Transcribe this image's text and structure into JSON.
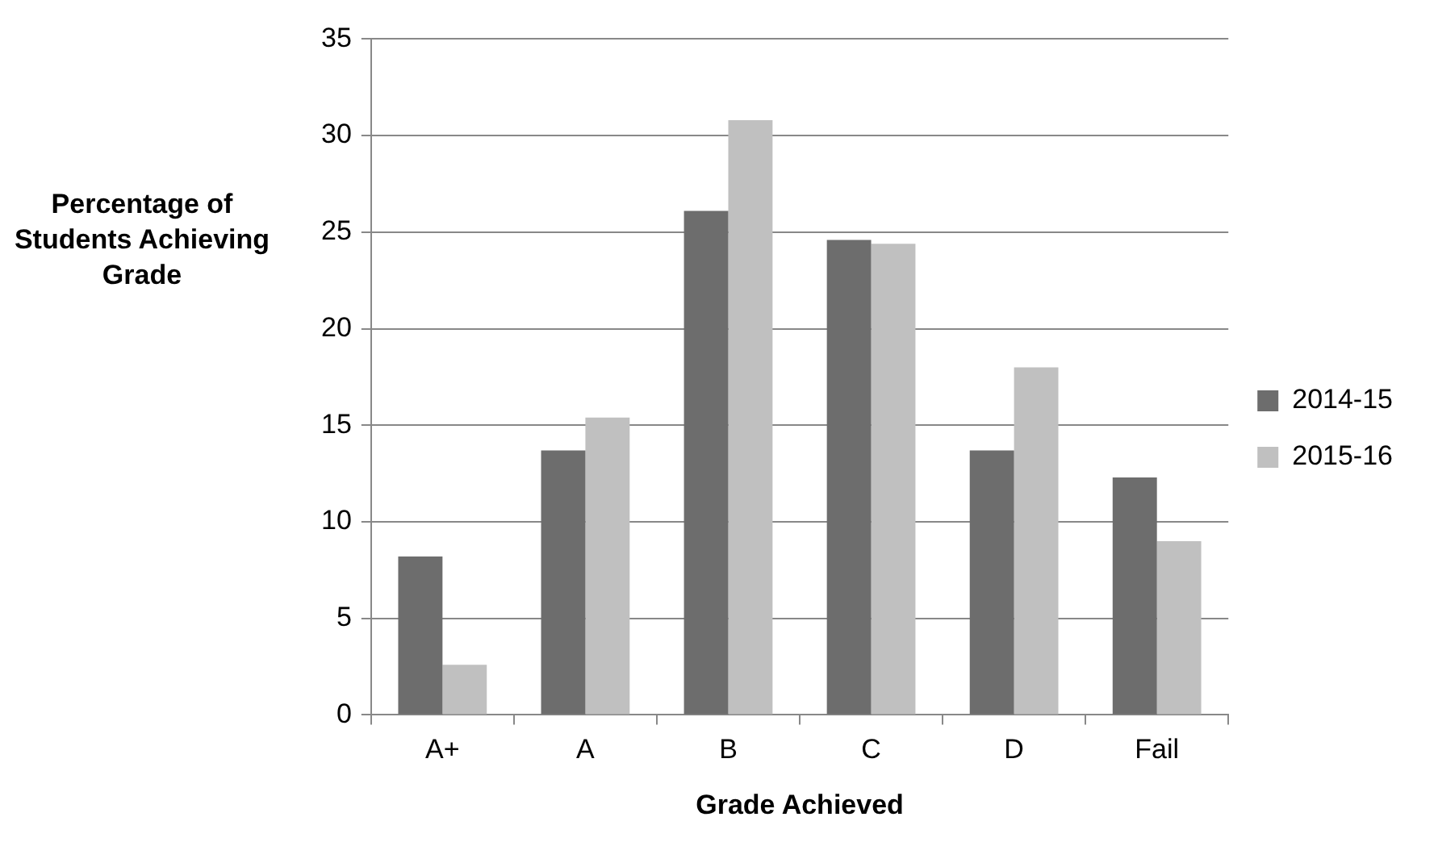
{
  "chart_data": {
    "type": "bar",
    "xlabel": "Grade Achieved",
    "ylabel": "Percentage of Students Achieving Grade",
    "categories": [
      "A+",
      "A",
      "B",
      "C",
      "D",
      "Fail"
    ],
    "series": [
      {
        "name": "2014-15",
        "color": "#6d6d6d",
        "values": [
          8.2,
          13.7,
          26.1,
          24.6,
          13.7,
          12.3
        ]
      },
      {
        "name": "2015-16",
        "color": "#c0c0c0",
        "values": [
          2.6,
          15.4,
          30.8,
          24.4,
          18.0,
          9.0
        ]
      }
    ],
    "ylim": [
      0,
      35
    ],
    "yticks": [
      0,
      5,
      10,
      15,
      20,
      25,
      30,
      35
    ],
    "grid": "y",
    "legend": "right"
  }
}
